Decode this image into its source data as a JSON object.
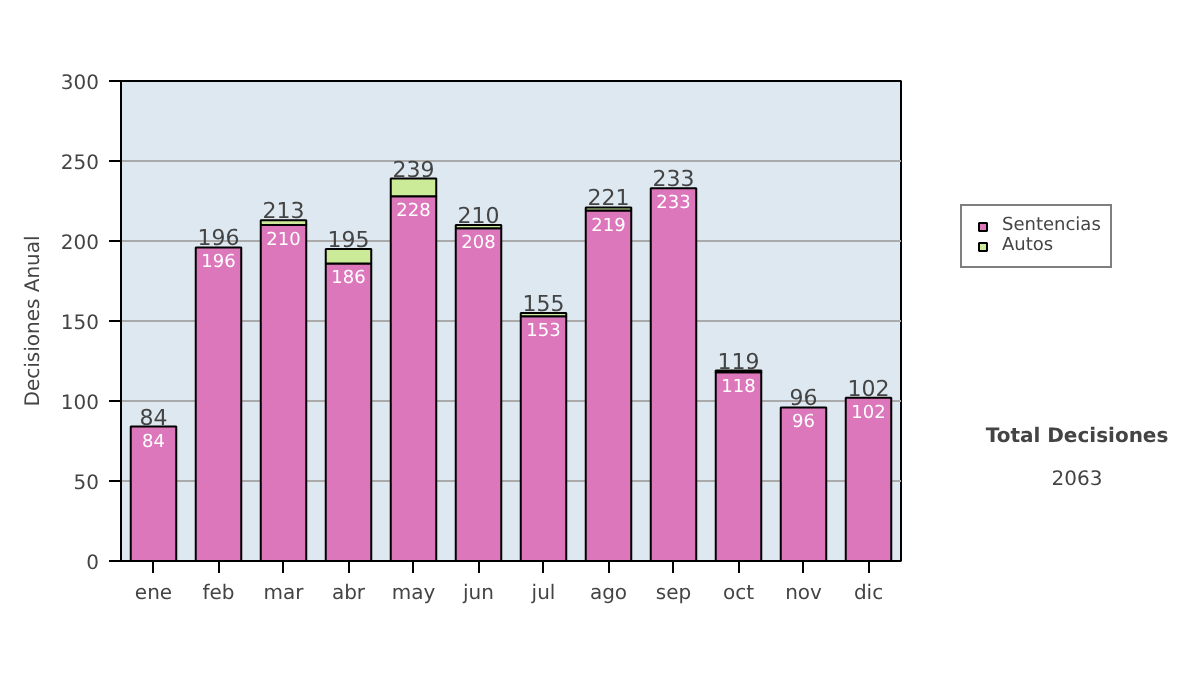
{
  "chart_data": {
    "type": "bar",
    "stacked": true,
    "ylabel": "Decisiones Anual",
    "categories": [
      "ene",
      "feb",
      "mar",
      "abr",
      "may",
      "jun",
      "jul",
      "ago",
      "sep",
      "oct",
      "nov",
      "dic"
    ],
    "series": [
      {
        "name": "Sentencias",
        "color": "#dd77bb",
        "values": [
          84,
          196,
          210,
          186,
          228,
          208,
          153,
          219,
          233,
          118,
          96,
          102
        ],
        "value_labels": [
          "84",
          "196",
          "210",
          "186",
          "228",
          "208",
          "153",
          "219",
          "233",
          "118",
          "96",
          "102"
        ]
      },
      {
        "name": "Autos",
        "color": "#cceb99",
        "values": [
          0,
          0,
          3,
          9,
          11,
          2,
          2,
          2,
          0,
          1,
          0,
          0
        ]
      }
    ],
    "totals": [
      "84",
      "196",
      "213",
      "195",
      "239",
      "210",
      "155",
      "221",
      "233",
      "119",
      "96",
      "102"
    ],
    "ylim": [
      0,
      300
    ],
    "yticks": [
      0,
      50,
      100,
      150,
      200,
      250,
      300
    ],
    "grid": "y",
    "legend": "right",
    "annotations": [
      "Total Decisiones",
      "2063"
    ]
  }
}
